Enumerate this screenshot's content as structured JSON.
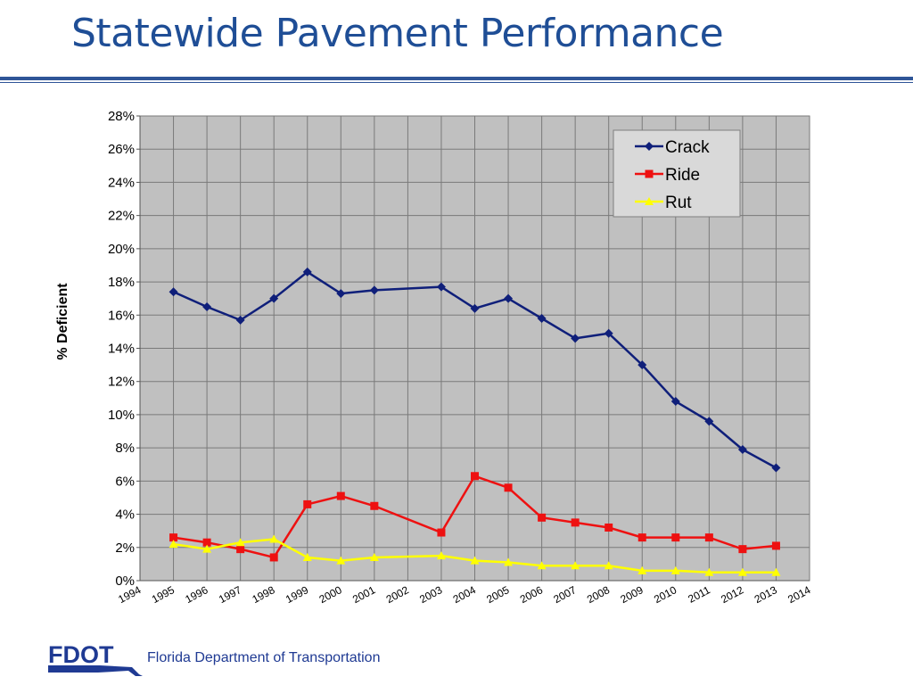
{
  "slide": {
    "title": "Statewide Pavement Performance",
    "footer_agency": "Florida Department of Transportation",
    "logo_text": "FDOT"
  },
  "colors": {
    "title": "#1f4e96",
    "rule": "#2f5597",
    "plot_bg": "#c0c0c0",
    "crack": "#0f1f7a",
    "ride": "#ee1111",
    "rut": "#ffff00"
  },
  "chart_data": {
    "type": "line",
    "title": "",
    "xlabel": "",
    "ylabel": "% Deficient",
    "x_ticks": [
      "1994",
      "1995",
      "1996",
      "1997",
      "1998",
      "1999",
      "2000",
      "2001",
      "2002",
      "2003",
      "2004",
      "2005",
      "2006",
      "2007",
      "2008",
      "2009",
      "2010",
      "2011",
      "2012",
      "2013",
      "2014"
    ],
    "y_ticks": [
      "0%",
      "2%",
      "4%",
      "6%",
      "8%",
      "10%",
      "12%",
      "14%",
      "16%",
      "18%",
      "20%",
      "22%",
      "24%",
      "26%",
      "28%"
    ],
    "xlim": [
      1994,
      2014
    ],
    "ylim": [
      0,
      28
    ],
    "grid": true,
    "legend_position": "top-right",
    "series": [
      {
        "name": "Crack",
        "color": "#0f1f7a",
        "marker": "diamond",
        "x": [
          1995,
          1996,
          1997,
          1998,
          1999,
          2000,
          2001,
          2003,
          2004,
          2005,
          2006,
          2007,
          2008,
          2009,
          2010,
          2011,
          2012,
          2013
        ],
        "values": [
          17.4,
          16.5,
          15.7,
          17.0,
          18.6,
          17.3,
          17.5,
          17.7,
          16.4,
          17.0,
          15.8,
          14.6,
          14.9,
          13.0,
          10.8,
          9.6,
          7.9,
          6.8
        ]
      },
      {
        "name": "Ride",
        "color": "#ee1111",
        "marker": "square",
        "x": [
          1995,
          1996,
          1997,
          1998,
          1999,
          2000,
          2001,
          2003,
          2004,
          2005,
          2006,
          2007,
          2008,
          2009,
          2010,
          2011,
          2012,
          2013
        ],
        "values": [
          2.6,
          2.3,
          1.9,
          1.4,
          4.6,
          5.1,
          4.5,
          2.9,
          6.3,
          5.6,
          3.8,
          3.5,
          3.2,
          2.6,
          2.6,
          2.6,
          1.9,
          2.1
        ]
      },
      {
        "name": "Rut",
        "color": "#ffff00",
        "marker": "triangle",
        "x": [
          1995,
          1996,
          1997,
          1998,
          1999,
          2000,
          2001,
          2003,
          2004,
          2005,
          2006,
          2007,
          2008,
          2009,
          2010,
          2011,
          2012,
          2013
        ],
        "values": [
          2.2,
          1.9,
          2.3,
          2.5,
          1.4,
          1.2,
          1.4,
          1.5,
          1.2,
          1.1,
          0.9,
          0.9,
          0.9,
          0.6,
          0.6,
          0.5,
          0.5,
          0.5
        ]
      }
    ]
  }
}
